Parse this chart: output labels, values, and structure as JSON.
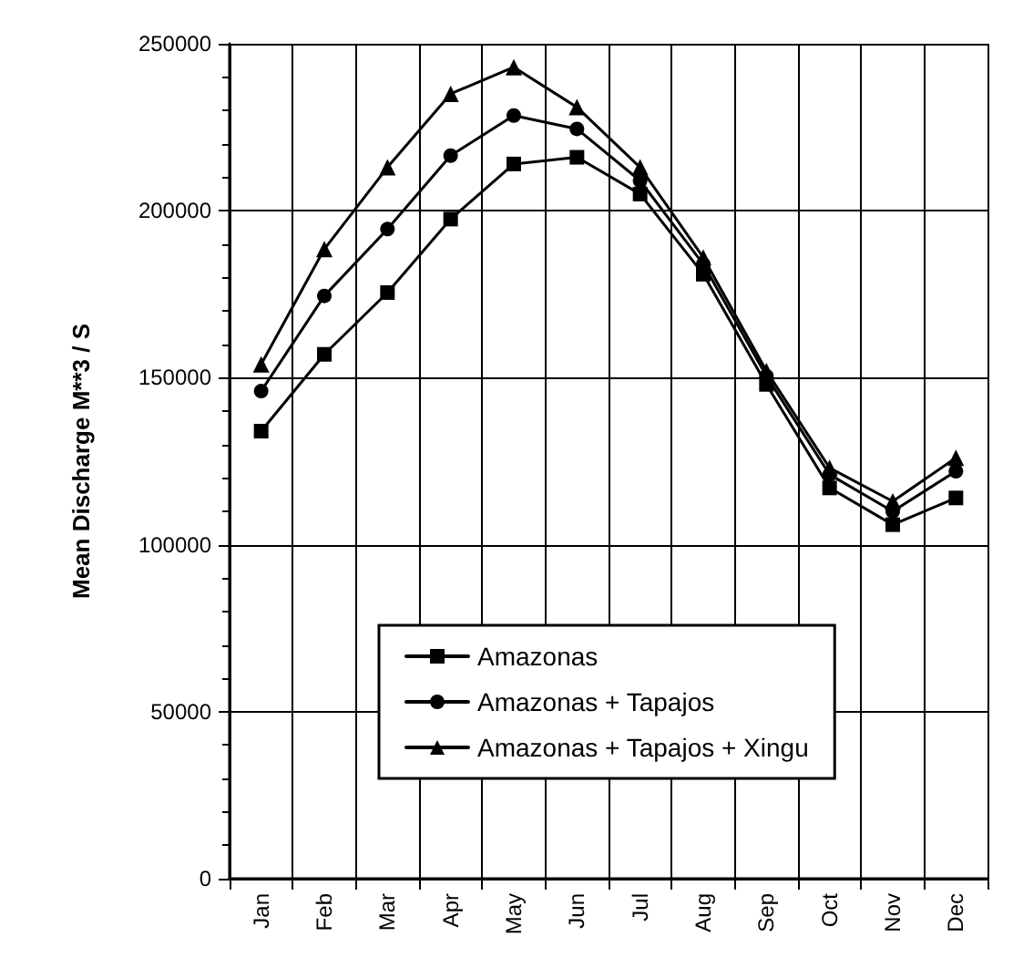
{
  "chart_data": {
    "type": "line",
    "ylabel": "Mean Discharge M**3 / S",
    "categories": [
      "Jan",
      "Feb",
      "Mar",
      "Apr",
      "May",
      "Jun",
      "Jul",
      "Aug",
      "Sep",
      "Oct",
      "Nov",
      "Dec"
    ],
    "series": [
      {
        "name": "Amazonas",
        "color": "#000000",
        "marker": "square",
        "values": [
          134000,
          157000,
          175500,
          197500,
          214000,
          216000,
          205000,
          181000,
          148000,
          117000,
          106000,
          114000
        ]
      },
      {
        "name": "Amazonas + Tapajos",
        "color": "#000000",
        "marker": "circle",
        "values": [
          146000,
          174500,
          194500,
          216500,
          228500,
          224500,
          209000,
          184000,
          150500,
          121000,
          110000,
          122000
        ]
      },
      {
        "name": "Amazonas + Tapajos + Xingu",
        "color": "#000000",
        "marker": "triangle",
        "values": [
          154000,
          188500,
          213000,
          235000,
          243000,
          231000,
          213000,
          186000,
          152000,
          123000,
          113000,
          126000
        ]
      }
    ],
    "ylim": [
      0,
      250000
    ],
    "yticks": [
      0,
      50000,
      100000,
      150000,
      200000,
      250000
    ],
    "grid": true,
    "legend": "bottom left",
    "line_style": "solid"
  }
}
